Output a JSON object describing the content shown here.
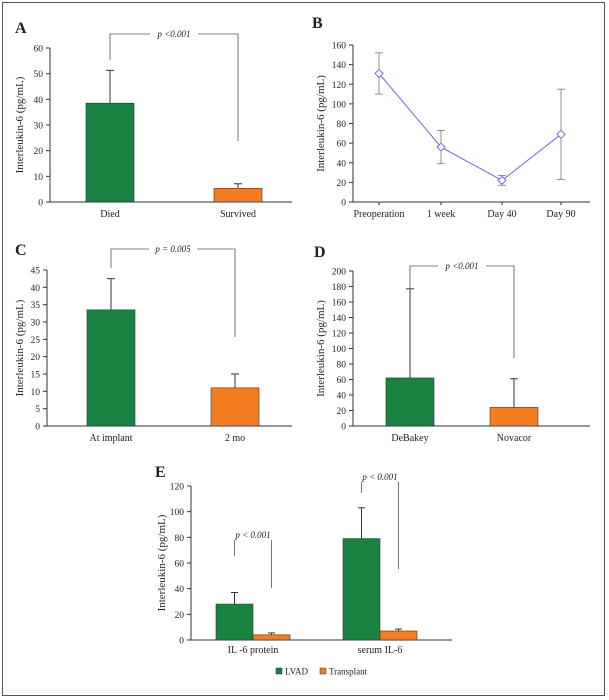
{
  "colors": {
    "group1": "#1a8342",
    "group2": "#f47c21",
    "line": "#6b6bd6",
    "axis": "#333333"
  },
  "chart_data": [
    {
      "panel": "A",
      "type": "bar",
      "ylabel": "Interleukin-6 (pg/mL)",
      "categories": [
        "Died",
        "Survived"
      ],
      "values": [
        38.5,
        5.3
      ],
      "errors": [
        12.8,
        1.8
      ],
      "bar_colors": [
        "#1a8342",
        "#f47c21"
      ],
      "ylim": [
        0,
        60
      ],
      "yticks": [
        0,
        10,
        20,
        30,
        40,
        50,
        60
      ],
      "annotation": {
        "text": "p <0.001"
      }
    },
    {
      "panel": "B",
      "type": "line",
      "ylabel": "Interleukin-6 (pg/mL)",
      "categories": [
        "Preoperation",
        "1  week",
        "Day  40",
        "Day  90"
      ],
      "values": [
        131,
        56,
        22,
        69
      ],
      "errors": [
        21,
        17,
        5,
        46
      ],
      "ylim": [
        0,
        160
      ],
      "yticks": [
        0,
        20,
        40,
        60,
        80,
        100,
        120,
        140,
        160
      ]
    },
    {
      "panel": "C",
      "type": "bar",
      "ylabel": "Interleukin-6 (pg/mL)",
      "categories": [
        "At  implant",
        "2 mo"
      ],
      "values": [
        33.5,
        11
      ],
      "errors": [
        9,
        4
      ],
      "bar_colors": [
        "#1a8342",
        "#f47c21"
      ],
      "ylim": [
        0,
        45
      ],
      "yticks": [
        0,
        5,
        10,
        15,
        20,
        25,
        30,
        35,
        40,
        45
      ],
      "annotation": {
        "text": "p = 0.005"
      }
    },
    {
      "panel": "D",
      "type": "bar",
      "ylabel": "Interleukin-6 (pg/mL)",
      "categories": [
        "DeBakey",
        "Novacor"
      ],
      "values": [
        62,
        24
      ],
      "errors": [
        115,
        37
      ],
      "bar_colors": [
        "#1a8342",
        "#f47c21"
      ],
      "ylim": [
        0,
        200
      ],
      "yticks": [
        0,
        20,
        40,
        60,
        80,
        100,
        120,
        140,
        160,
        180,
        200
      ],
      "annotation": {
        "text": "p <0.001"
      }
    },
    {
      "panel": "E",
      "type": "bar",
      "ylabel": "Interleukin-6 (pg/mL)",
      "categories": [
        "IL -6 protein",
        "serum IL-6"
      ],
      "series": [
        {
          "name": "LVAD",
          "values": [
            28,
            79
          ],
          "errors": [
            9,
            24
          ]
        },
        {
          "name": "Transplant",
          "values": [
            4,
            7
          ],
          "errors": [
            1.5,
            1.5
          ]
        }
      ],
      "series_colors": [
        "#1a8342",
        "#f47c21"
      ],
      "ylim": [
        0,
        120
      ],
      "yticks": [
        0,
        20,
        40,
        60,
        80,
        100,
        120
      ],
      "annotations": [
        {
          "text": "p < 0.001"
        },
        {
          "text": "p < 0.001"
        }
      ],
      "legend": "bottom"
    }
  ]
}
